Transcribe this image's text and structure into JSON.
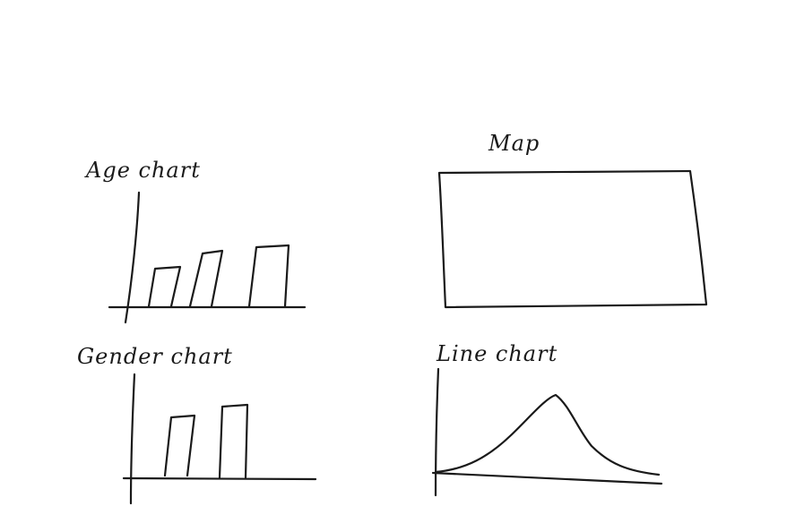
{
  "labels": {
    "age_chart": "Age chart",
    "gender_chart": "Gender chart",
    "map": "Map",
    "line_chart": "Line chart"
  }
}
